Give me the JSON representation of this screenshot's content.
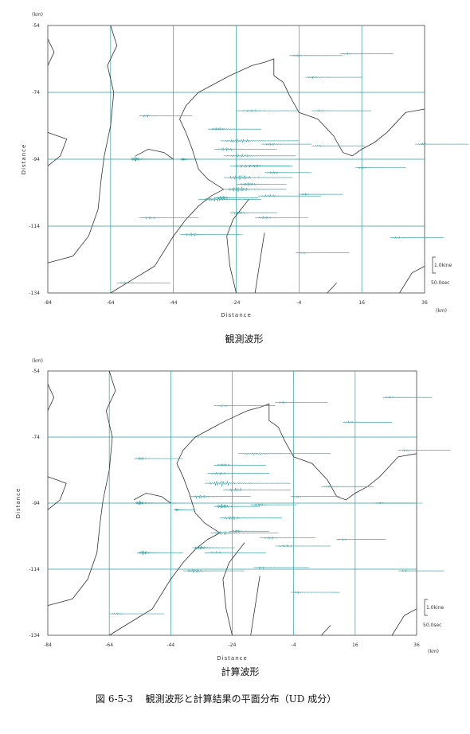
{
  "caption": "図 6-5-3　 観測波形と計算結果の平面分布（UD 成分）",
  "chart_data": [
    {
      "type": "map",
      "title": "観測波形",
      "xlabel": "Distance",
      "ylabel": "Distance",
      "x_unit": "(km)",
      "y_unit": "(km)",
      "xlim": [
        -84,
        36
      ],
      "ylim": [
        -134,
        -54
      ],
      "xticks": [
        -84,
        -64,
        -44,
        -24,
        -4,
        16,
        36
      ],
      "yticks": [
        -54,
        -74,
        -94,
        -114,
        -134
      ],
      "grid": true,
      "scale_amplitude": "1.0kine",
      "scale_time": "50.0sec",
      "traces": [
        {
          "x": -7,
          "y": -63,
          "len": 17,
          "amp": 0.6,
          "burst": 0.2
        },
        {
          "x": 9,
          "y": -62.5,
          "len": 17,
          "amp": 0.6,
          "burst": 0.2
        },
        {
          "x": -2,
          "y": -69.5,
          "len": 18,
          "amp": 0.8,
          "burst": 0.2
        },
        {
          "x": 0,
          "y": -79.5,
          "len": 19,
          "amp": 0.6,
          "burst": 0.2
        },
        {
          "x": -24,
          "y": -79.5,
          "len": 20,
          "amp": 0.7,
          "burst": 0.4
        },
        {
          "x": -55,
          "y": -81,
          "len": 17,
          "amp": 0.9,
          "burst": 0.2
        },
        {
          "x": -33,
          "y": -85,
          "len": 17,
          "amp": 1.1,
          "burst": 0.3
        },
        {
          "x": -29,
          "y": -88.5,
          "len": 25,
          "amp": 1.4,
          "burst": 0.4
        },
        {
          "x": -31,
          "y": -91,
          "len": 20,
          "amp": 1.0,
          "burst": 0.3
        },
        {
          "x": -28,
          "y": -93,
          "len": 23,
          "amp": 1.0,
          "burst": 0.4
        },
        {
          "x": -26,
          "y": -96,
          "len": 20,
          "amp": 1.2,
          "burst": 0.4
        },
        {
          "x": -28,
          "y": -99.5,
          "len": 22,
          "amp": 1.8,
          "burst": 0.4
        },
        {
          "x": -28,
          "y": -103,
          "len": 20,
          "amp": 2.0,
          "burst": 0.4
        },
        {
          "x": -31,
          "y": -105.5,
          "len": 14,
          "amp": 1.6,
          "burst": 0.3
        },
        {
          "x": -58,
          "y": -94,
          "len": 14,
          "amp": 2.4,
          "burst": 0.2
        },
        {
          "x": -42,
          "y": -94,
          "len": 6,
          "amp": 1.0,
          "burst": 0.3
        },
        {
          "x": -36,
          "y": -106,
          "len": 20,
          "amp": 1.4,
          "burst": 0.4
        },
        {
          "x": -24,
          "y": -101.5,
          "len": 16,
          "amp": 1.0,
          "burst": 0.4
        },
        {
          "x": -26,
          "y": -110,
          "len": 15,
          "amp": 0.8,
          "burst": 0.3
        },
        {
          "x": -18,
          "y": -111.5,
          "len": 17,
          "amp": 0.8,
          "burst": 0.3
        },
        {
          "x": -20,
          "y": -96,
          "len": 13,
          "amp": 0.7,
          "burst": 0.3
        },
        {
          "x": -15,
          "y": -98,
          "len": 15,
          "amp": 0.7,
          "burst": 0.3
        },
        {
          "x": -17,
          "y": -105,
          "len": 20,
          "amp": 0.9,
          "burst": 0.3
        },
        {
          "x": -16,
          "y": -89.5,
          "len": 16,
          "amp": 0.7,
          "burst": 0.3
        },
        {
          "x": 0,
          "y": -90,
          "len": 17,
          "amp": 0.5,
          "burst": 0.2
        },
        {
          "x": -4,
          "y": -104.5,
          "len": 14,
          "amp": 0.6,
          "burst": 0.2
        },
        {
          "x": 14,
          "y": -96.5,
          "len": 16,
          "amp": 0.5,
          "burst": 0.2
        },
        {
          "x": 33,
          "y": -89.5,
          "len": 17,
          "amp": 0.5,
          "burst": 0.2
        },
        {
          "x": -55,
          "y": -111.5,
          "len": 19,
          "amp": 0.8,
          "burst": 0.3
        },
        {
          "x": -42,
          "y": -116.5,
          "len": 20,
          "amp": 1.0,
          "burst": 0.3
        },
        {
          "x": 25,
          "y": -117.5,
          "len": 17,
          "amp": 0.5,
          "burst": 0.2
        },
        {
          "x": -5,
          "y": -122,
          "len": 17,
          "amp": 0.5,
          "burst": 0.2
        },
        {
          "x": -62,
          "y": -131,
          "len": 17,
          "amp": 0.6,
          "burst": 0.2
        }
      ]
    },
    {
      "type": "map",
      "title": "計算波形",
      "xlabel": "Distance",
      "ylabel": "Distance",
      "x_unit": "(km)",
      "y_unit": "(km)",
      "xlim": [
        -84,
        36
      ],
      "ylim": [
        -134,
        -54
      ],
      "xticks": [
        -84,
        -64,
        -44,
        -24,
        -4,
        16,
        36
      ],
      "yticks": [
        -54,
        -74,
        -94,
        -114,
        -134
      ],
      "grid": true,
      "scale_amplitude": "1.0kine",
      "scale_time": "50.0sec",
      "traces": [
        {
          "x": -10,
          "y": -63.5,
          "len": 17,
          "amp": 0.6,
          "burst": 0.2
        },
        {
          "x": 25,
          "y": -62,
          "len": 16,
          "amp": 0.6,
          "burst": 0.2
        },
        {
          "x": -30,
          "y": -64.5,
          "len": 20,
          "amp": 0.6,
          "burst": 0.2
        },
        {
          "x": 12,
          "y": -69.5,
          "len": 16,
          "amp": 0.6,
          "burst": 0.2
        },
        {
          "x": -56,
          "y": -80.5,
          "len": 16,
          "amp": 0.9,
          "burst": 0.2
        },
        {
          "x": -22,
          "y": -79,
          "len": 30,
          "amp": 0.8,
          "burst": 0.3
        },
        {
          "x": -30,
          "y": -82.5,
          "len": 17,
          "amp": 1.0,
          "burst": 0.3
        },
        {
          "x": -32,
          "y": -85,
          "len": 20,
          "amp": 0.9,
          "burst": 0.3
        },
        {
          "x": -33,
          "y": -88,
          "len": 28,
          "amp": 2.2,
          "burst": 0.3
        },
        {
          "x": -27,
          "y": -90,
          "len": 22,
          "amp": 1.3,
          "burst": 0.3
        },
        {
          "x": -38,
          "y": -92,
          "len": 20,
          "amp": 1.2,
          "burst": 0.3
        },
        {
          "x": -30,
          "y": -95,
          "len": 15,
          "amp": 1.8,
          "burst": 0.3
        },
        {
          "x": -28,
          "y": -98.5,
          "len": 20,
          "amp": 1.3,
          "burst": 0.3
        },
        {
          "x": -31,
          "y": -103,
          "len": 22,
          "amp": 1.4,
          "burst": 0.3
        },
        {
          "x": -56,
          "y": -94,
          "len": 14,
          "amp": 2.0,
          "burst": 0.2
        },
        {
          "x": -43,
          "y": -96,
          "len": 7,
          "amp": 0.8,
          "burst": 0.2
        },
        {
          "x": -18,
          "y": -94.5,
          "len": 15,
          "amp": 0.7,
          "burst": 0.3
        },
        {
          "x": -25,
          "y": -102.5,
          "len": 13,
          "amp": 0.8,
          "burst": 0.3
        },
        {
          "x": -15,
          "y": -104.5,
          "len": 18,
          "amp": 0.7,
          "burst": 0.3
        },
        {
          "x": -10,
          "y": -107,
          "len": 18,
          "amp": 0.7,
          "burst": 0.3
        },
        {
          "x": -37,
          "y": -107.5,
          "len": 14,
          "amp": 1.5,
          "burst": 0.3
        },
        {
          "x": -55,
          "y": -109,
          "len": 15,
          "amp": 2.0,
          "burst": 0.2
        },
        {
          "x": -33,
          "y": -109,
          "len": 20,
          "amp": 0.7,
          "burst": 0.3
        },
        {
          "x": -17,
          "y": -113.5,
          "len": 18,
          "amp": 0.6,
          "burst": 0.2
        },
        {
          "x": -40,
          "y": -114.5,
          "len": 20,
          "amp": 1.3,
          "burst": 0.3
        },
        {
          "x": 5,
          "y": -89,
          "len": 17,
          "amp": 0.5,
          "burst": 0.2
        },
        {
          "x": -5,
          "y": -92,
          "len": 16,
          "amp": 0.5,
          "burst": 0.2
        },
        {
          "x": 22,
          "y": -94,
          "len": 16,
          "amp": 0.5,
          "burst": 0.2
        },
        {
          "x": 10,
          "y": -105,
          "len": 16,
          "amp": 0.5,
          "burst": 0.2
        },
        {
          "x": 30,
          "y": -78,
          "len": 17,
          "amp": 0.5,
          "burst": 0.2
        },
        {
          "x": 30,
          "y": -114.5,
          "len": 15,
          "amp": 0.5,
          "burst": 0.2
        },
        {
          "x": -5,
          "y": -121,
          "len": 16,
          "amp": 0.5,
          "burst": 0.2
        },
        {
          "x": -64,
          "y": -127.5,
          "len": 18,
          "amp": 0.6,
          "burst": 0.2
        }
      ]
    }
  ]
}
